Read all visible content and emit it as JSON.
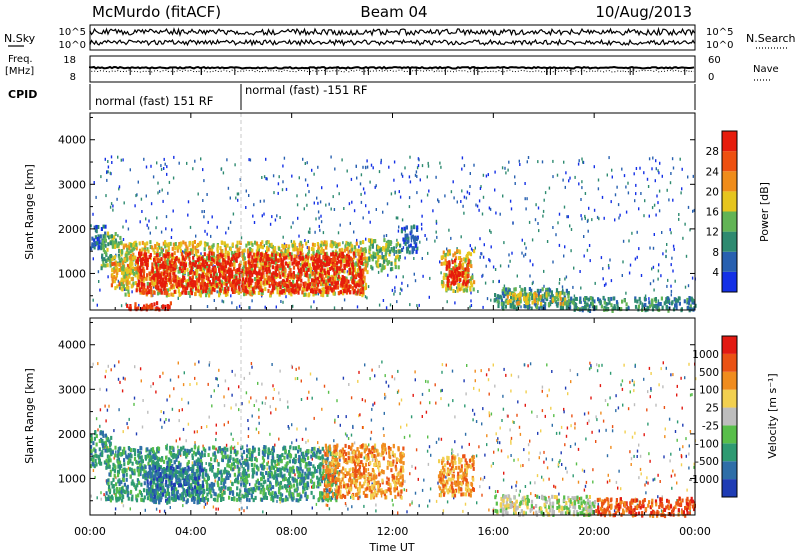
{
  "header": {
    "title": "McMurdo (fitACF)",
    "beam": "Beam 04",
    "date": "10/Aug/2013"
  },
  "top_panels": {
    "nsky_label": "N.Sky",
    "nsky_ticks": [
      "10^5",
      "10^0"
    ],
    "nsearch_label": "N.Search",
    "nsearch_ticks": [
      "10^5",
      "10^0"
    ],
    "freq_label_1": "Freq.",
    "freq_label_2": "[MHz]",
    "freq_ticks": [
      "18",
      "8"
    ],
    "nave_label": "Nave",
    "nave_ticks": [
      "60",
      "0"
    ],
    "cpid_label": "CPID",
    "cpid_segments": [
      {
        "label": "normal (fast) 151 RF",
        "start": "00:00",
        "end": "06:00"
      },
      {
        "label": "normal (fast) -151 RF",
        "start": "06:00",
        "end": "00:00"
      }
    ]
  },
  "x_ticks": [
    "00:00",
    "04:00",
    "08:00",
    "12:00",
    "16:00",
    "20:00",
    "00:00"
  ],
  "xlabel": "Time UT",
  "chart_data": [
    {
      "type": "heatmap",
      "panel": "power",
      "ylabel": "Slant Range [km]",
      "yticks": [
        "1000",
        "2000",
        "3000",
        "4000"
      ],
      "ylim": [
        180,
        4600
      ],
      "xlim_hours": [
        0,
        24
      ],
      "colorbar_label": "Power [dB]",
      "colorbar_ticks": [
        "4",
        "8",
        "12",
        "16",
        "20",
        "24",
        "28"
      ],
      "colorbar_colors": [
        "#1430e6",
        "#2860b0",
        "#2e8a70",
        "#62b455",
        "#e6c51e",
        "#ef8c1a",
        "#ee5010",
        "#e61c0c"
      ],
      "regions": [
        {
          "t": [
            0.0,
            0.6
          ],
          "r": [
            1600,
            2100
          ],
          "level": 1
        },
        {
          "t": [
            0.4,
            1.2
          ],
          "r": [
            1100,
            1950
          ],
          "level": 3
        },
        {
          "t": [
            0.8,
            1.6
          ],
          "r": [
            700,
            1300
          ],
          "level": 5
        },
        {
          "t": [
            1.2,
            11.0
          ],
          "r": [
            550,
            1750
          ],
          "level": 4
        },
        {
          "t": [
            1.8,
            10.8
          ],
          "r": [
            600,
            1500
          ],
          "level": 7
        },
        {
          "t": [
            1.4,
            3.2
          ],
          "r": [
            230,
            380
          ],
          "level": 7
        },
        {
          "t": [
            11.0,
            12.3
          ],
          "r": [
            1100,
            1800
          ],
          "level": 3
        },
        {
          "t": [
            12.3,
            13.0
          ],
          "r": [
            1500,
            2100
          ],
          "level": 1
        },
        {
          "t": [
            13.9,
            15.2
          ],
          "r": [
            650,
            1550
          ],
          "level": 4
        },
        {
          "t": [
            14.1,
            15.0
          ],
          "r": [
            750,
            1350
          ],
          "level": 7
        },
        {
          "t": [
            16.0,
            19.0
          ],
          "r": [
            250,
            700
          ],
          "level": 2
        },
        {
          "t": [
            16.5,
            19.0
          ],
          "r": [
            350,
            600
          ],
          "level": 4
        },
        {
          "t": [
            19.0,
            24.0
          ],
          "r": [
            200,
            500
          ],
          "level": 2
        }
      ]
    },
    {
      "type": "heatmap",
      "panel": "velocity",
      "ylabel": "Slant Range [km]",
      "yticks": [
        "1000",
        "2000",
        "3000",
        "4000"
      ],
      "ylim": [
        180,
        4600
      ],
      "xlim_hours": [
        0,
        24
      ],
      "colorbar_label": "Velocity [m s⁻¹]",
      "colorbar_ticks": [
        "1000",
        "500",
        "100",
        "25",
        "-25",
        "-100",
        "-500",
        "-1000"
      ],
      "colorbar_colors": [
        "#1f3cb4",
        "#2e6ea8",
        "#2e9a72",
        "#58be4a",
        "#bdbdbd",
        "#f2d050",
        "#f08c1e",
        "#ea5214",
        "#e21a12"
      ],
      "regions": [
        {
          "t": [
            0.0,
            0.8
          ],
          "r": [
            1300,
            2100
          ],
          "level": 2
        },
        {
          "t": [
            0.6,
            9.8
          ],
          "r": [
            550,
            1750
          ],
          "level": 2
        },
        {
          "t": [
            2.2,
            4.5
          ],
          "r": [
            500,
            1300
          ],
          "level": 1
        },
        {
          "t": [
            9.2,
            12.4
          ],
          "r": [
            600,
            1800
          ],
          "level": 6
        },
        {
          "t": [
            13.8,
            15.2
          ],
          "r": [
            650,
            1550
          ],
          "level": 6
        },
        {
          "t": [
            16.0,
            20.0
          ],
          "r": [
            220,
            650
          ],
          "level": 4
        },
        {
          "t": [
            20.0,
            24.0
          ],
          "r": [
            200,
            600
          ],
          "level": 7
        }
      ]
    }
  ]
}
